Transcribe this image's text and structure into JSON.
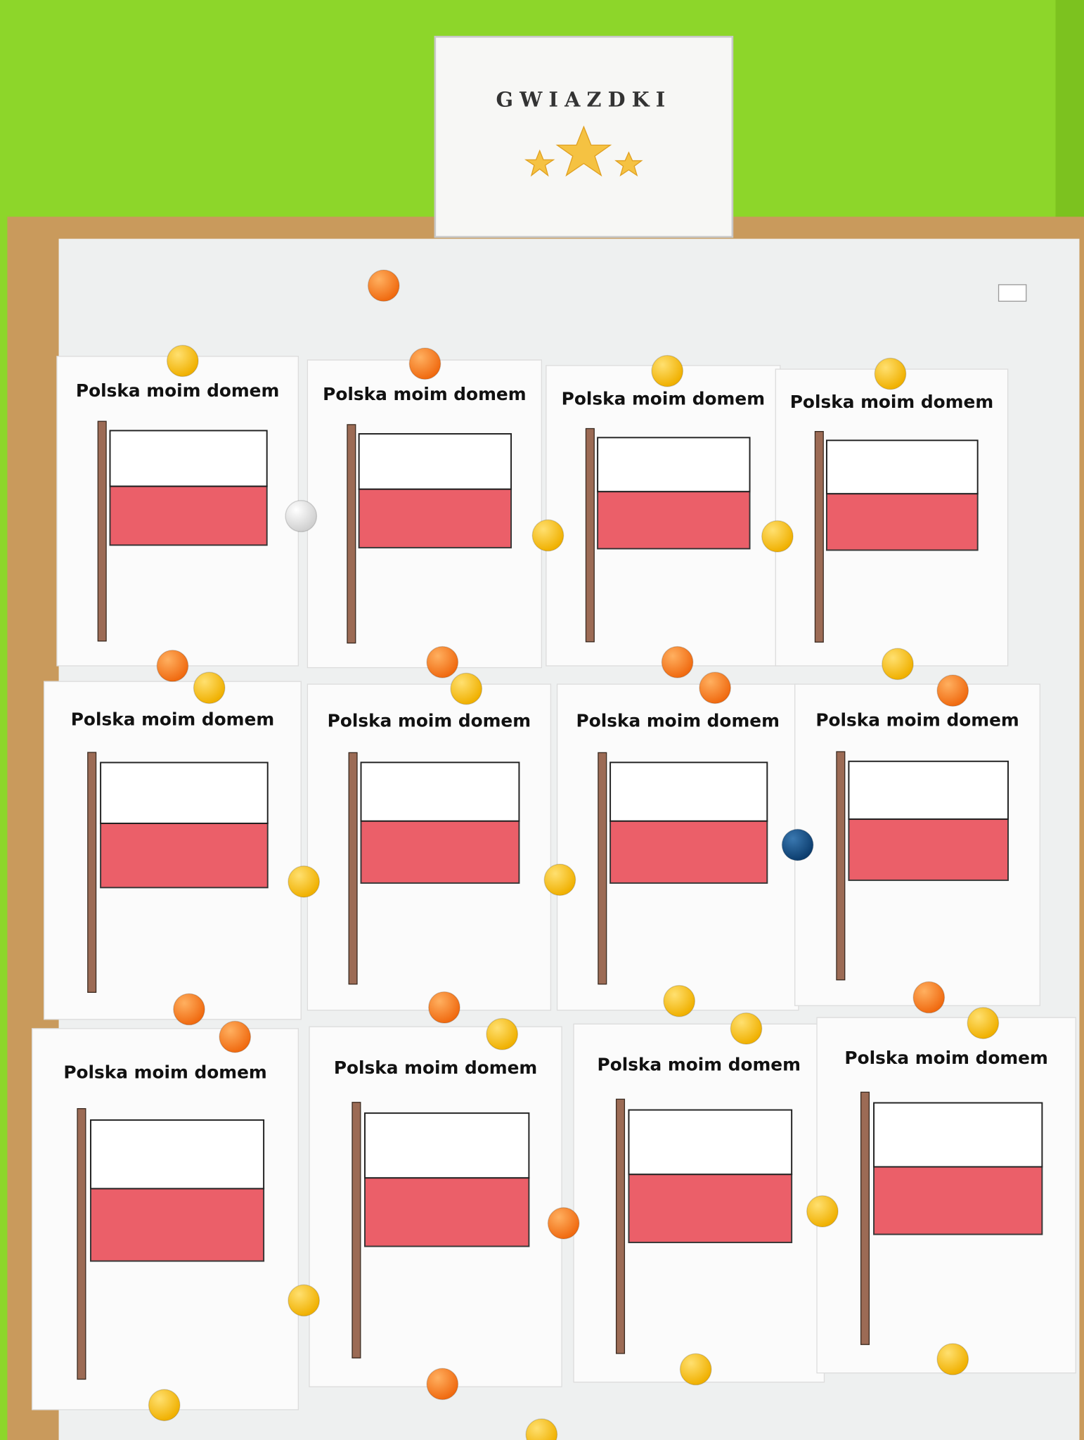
{
  "sign": {
    "title": "GWIAZDKI"
  },
  "sheets": [
    {
      "title": "Polska moim domem"
    },
    {
      "title": "Polska moim domem"
    },
    {
      "title": "Polska moim domem"
    },
    {
      "title": "Polska moim domem"
    },
    {
      "title": "Polska moim domem"
    },
    {
      "title": "Polska moim domem"
    },
    {
      "title": "Polska moim domem"
    },
    {
      "title": "Polska moim domem"
    },
    {
      "title": "Polska moim domem"
    },
    {
      "title": "Polska moim domem"
    },
    {
      "title": "Polska moim domem"
    },
    {
      "title": "Polska moim domem"
    }
  ]
}
